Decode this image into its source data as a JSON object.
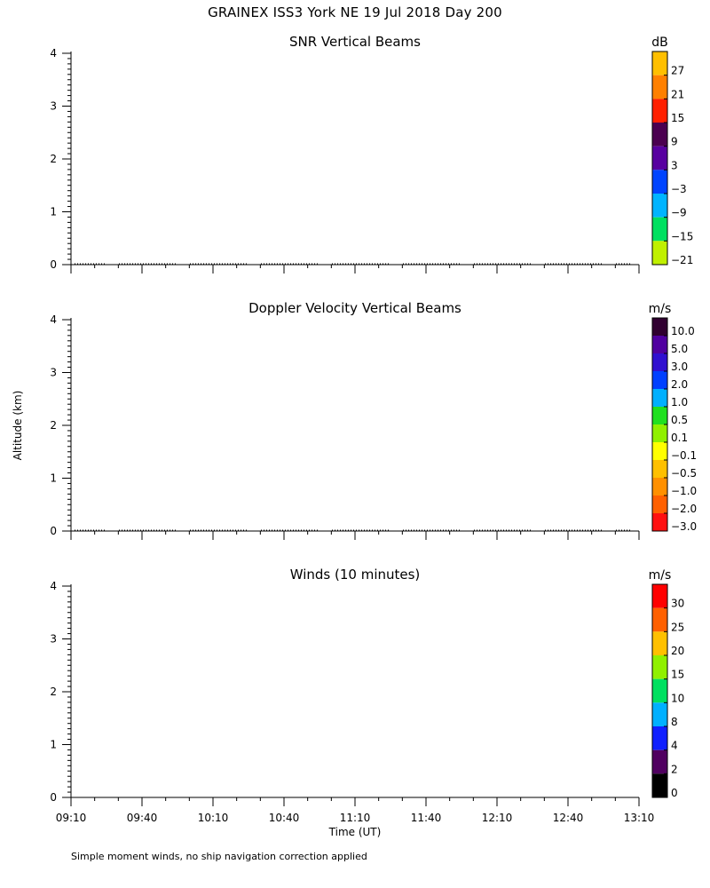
{
  "header": {
    "title": "GRAINEX ISS3 York NE  19 Jul 2018 Day 200"
  },
  "footer": {
    "note": "Simple moment winds, no ship navigation correction applied"
  },
  "chart_data": [
    {
      "type": "heatmap",
      "title": "SNR Vertical Beams",
      "ylabel": "",
      "ylim": [
        0,
        4
      ],
      "y_ticks": [
        "0",
        "1",
        "2",
        "3",
        "4"
      ],
      "x_ticks": [
        "09:10",
        "09:40",
        "10:10",
        "10:40",
        "11:10",
        "11:40",
        "12:10",
        "12:40",
        "13:10"
      ],
      "xlim": [
        "09:10",
        "13:10"
      ],
      "values": [],
      "colorbar": {
        "unit": "dB",
        "labels": [
          "27",
          "21",
          "15",
          "9",
          "3",
          "−3",
          "−9",
          "−15",
          "−21"
        ],
        "colors": [
          "#ffbf00",
          "#ff8000",
          "#ff2000",
          "#4b0050",
          "#5800a0",
          "#0044ff",
          "#00b4ff",
          "#00e060",
          "#c0f000"
        ]
      },
      "baseline_dotted": true
    },
    {
      "type": "heatmap",
      "title": "Doppler Velocity Vertical Beams",
      "ylabel": "Altitude (km)",
      "ylim": [
        0,
        4
      ],
      "y_ticks": [
        "0",
        "1",
        "2",
        "3",
        "4"
      ],
      "x_ticks": [
        "09:10",
        "09:40",
        "10:10",
        "10:40",
        "11:10",
        "11:40",
        "12:10",
        "12:40",
        "13:10"
      ],
      "xlim": [
        "09:10",
        "13:10"
      ],
      "values": [],
      "colorbar": {
        "unit": "m/s",
        "labels": [
          "10.0",
          "5.0",
          "3.0",
          "2.0",
          "1.0",
          "0.5",
          "0.1",
          "−0.1",
          "−0.5",
          "−1.0",
          "−2.0",
          "−3.0"
        ],
        "colors": [
          "#300030",
          "#5000a0",
          "#3010d0",
          "#0040ff",
          "#00b0ff",
          "#20e020",
          "#90f000",
          "#ffff00",
          "#ffc000",
          "#ff9000",
          "#ff6000",
          "#ff1010"
        ]
      },
      "baseline_dotted": true
    },
    {
      "type": "heatmap",
      "title": "Winds (10 minutes)",
      "ylabel": "",
      "xlabel": "Time (UT)",
      "ylim": [
        0,
        4
      ],
      "y_ticks": [
        "0",
        "1",
        "2",
        "3",
        "4"
      ],
      "x_ticks": [
        "09:10",
        "09:40",
        "10:10",
        "10:40",
        "11:10",
        "11:40",
        "12:10",
        "12:40",
        "13:10"
      ],
      "xlim": [
        "09:10",
        "13:10"
      ],
      "values": [],
      "colorbar": {
        "unit": "m/s",
        "labels": [
          "30",
          "25",
          "20",
          "15",
          "10",
          "8",
          "4",
          "2",
          "0"
        ],
        "colors": [
          "#ff0000",
          "#ff6000",
          "#ffc000",
          "#90f000",
          "#00e060",
          "#00b0ff",
          "#1020ff",
          "#500060",
          "#000000"
        ]
      },
      "baseline_dotted": false
    }
  ]
}
